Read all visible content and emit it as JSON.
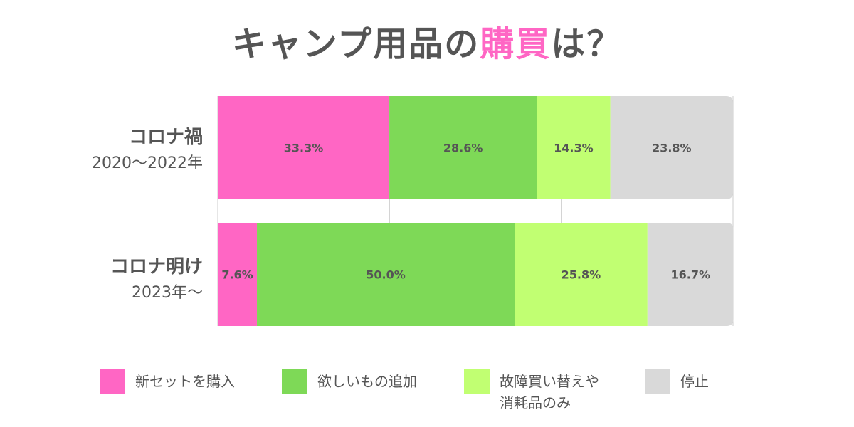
{
  "title": {
    "before": "キャンプ用品の",
    "highlight": "購買",
    "after": "は？"
  },
  "colors": {
    "highlight": "#ff66c4",
    "text": "#555555",
    "grid": "#cccccc"
  },
  "chart_data": {
    "type": "bar",
    "orientation": "horizontal",
    "stacked": true,
    "categories": [
      {
        "label": "コロナ禍",
        "sublabel": "2020〜2022年"
      },
      {
        "label": "コロナ明け",
        "sublabel": "2023年〜"
      }
    ],
    "series": [
      {
        "name": "新セットを購入",
        "color": "#ff66c4",
        "values": [
          33.3,
          7.6
        ]
      },
      {
        "name": "欲しいもの追加",
        "color": "#7ed957",
        "values": [
          28.6,
          50.0
        ]
      },
      {
        "name": "故障買い替えや\n消耗品のみ",
        "color": "#c1ff72",
        "values": [
          14.3,
          25.8
        ]
      },
      {
        "name": "停止",
        "color": "#d9d9d9",
        "values": [
          23.8,
          16.7
        ]
      }
    ],
    "data_labels": [
      [
        "33.3%",
        "28.6%",
        "14.3%",
        "23.8%"
      ],
      [
        "7.6%",
        "50.0%",
        "25.8%",
        "16.7%"
      ]
    ],
    "legend_position": "bottom",
    "grid": true
  }
}
